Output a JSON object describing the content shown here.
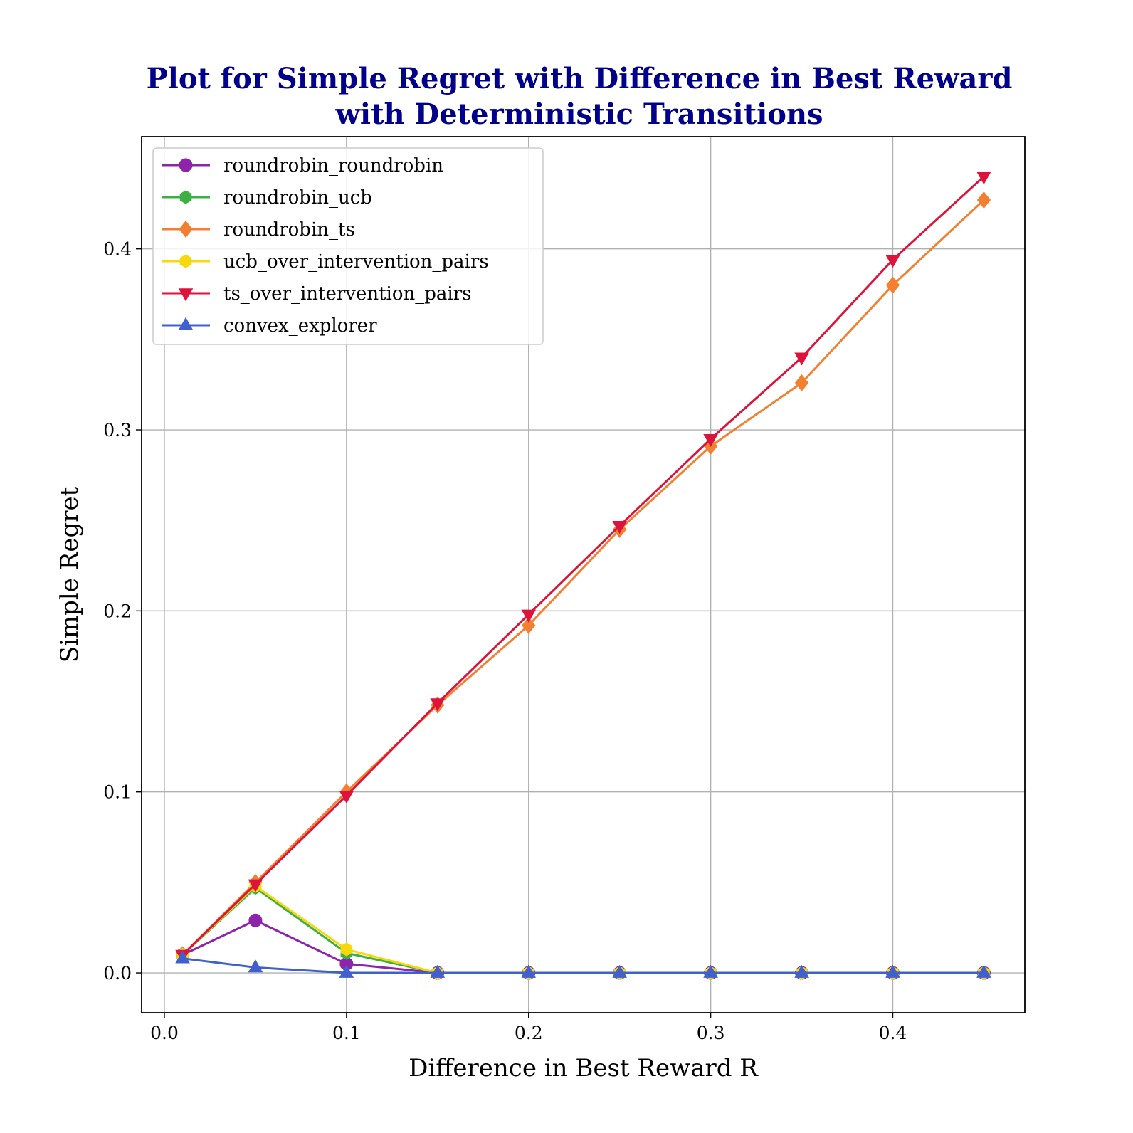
{
  "chart_data": {
    "type": "line",
    "title_line1": "Plot for Simple Regret with Difference in Best Reward",
    "title_line2": "with Deterministic Transitions",
    "xlabel": "Difference in Best Reward R",
    "ylabel": "Simple Regret",
    "xlim": [
      -0.0125,
      0.4725
    ],
    "ylim": [
      -0.022,
      0.462
    ],
    "xticks": [
      0.0,
      0.1,
      0.2,
      0.3,
      0.4
    ],
    "xtick_labels": [
      "0.0",
      "0.1",
      "0.2",
      "0.3",
      "0.4"
    ],
    "yticks": [
      0.0,
      0.1,
      0.2,
      0.3,
      0.4
    ],
    "ytick_labels": [
      "0.0",
      "0.1",
      "0.2",
      "0.3",
      "0.4"
    ],
    "grid": true,
    "legend_position": "top-left",
    "x": [
      0.01,
      0.05,
      0.1,
      0.15,
      0.2,
      0.25,
      0.3,
      0.35,
      0.4,
      0.45
    ],
    "series": [
      {
        "name": "roundrobin_roundrobin",
        "color": "#8e24aa",
        "marker": "circle",
        "values": [
          0.01,
          0.029,
          0.005,
          0.0,
          0.0,
          0.0,
          0.0,
          0.0,
          0.0,
          0.0
        ]
      },
      {
        "name": "roundrobin_ucb",
        "color": "#3cb043",
        "marker": "hexagon",
        "values": [
          0.01,
          0.047,
          0.011,
          0.0,
          0.0,
          0.0,
          0.0,
          0.0,
          0.0,
          0.0
        ]
      },
      {
        "name": "roundrobin_ts",
        "color": "#f28030",
        "marker": "diamond",
        "values": [
          0.01,
          0.05,
          0.1,
          0.148,
          0.192,
          0.245,
          0.291,
          0.326,
          0.38,
          0.427
        ]
      },
      {
        "name": "ucb_over_intervention_pairs",
        "color": "#f6d80c",
        "marker": "hexagon",
        "values": [
          0.01,
          0.048,
          0.013,
          0.0,
          0.0,
          0.0,
          0.0,
          0.0,
          0.0,
          0.0
        ]
      },
      {
        "name": "ts_over_intervention_pairs",
        "color": "#dc143c",
        "marker": "triangle-down",
        "values": [
          0.01,
          0.049,
          0.098,
          0.149,
          0.198,
          0.247,
          0.295,
          0.34,
          0.394,
          0.44
        ]
      },
      {
        "name": "convex_explorer",
        "color": "#4060d0",
        "marker": "triangle-up",
        "values": [
          0.008,
          0.003,
          0.0,
          0.0,
          0.0,
          0.0,
          0.0,
          0.0,
          0.0,
          0.0
        ]
      }
    ]
  }
}
